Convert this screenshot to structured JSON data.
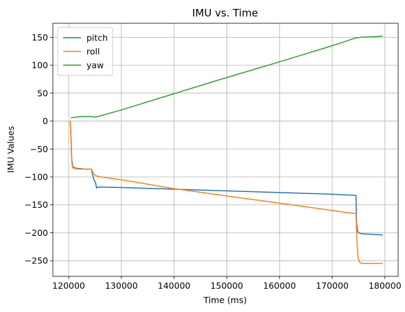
{
  "chart_data": {
    "type": "line",
    "title": "IMU vs. Time",
    "xlabel": "Time (ms)",
    "ylabel": "IMU Values",
    "xlim": [
      117000,
      182500
    ],
    "ylim": [
      -278,
      175
    ],
    "xticks": [
      120000,
      130000,
      140000,
      150000,
      160000,
      170000,
      180000
    ],
    "yticks": [
      -250,
      -200,
      -150,
      -100,
      -50,
      0,
      50,
      100,
      150
    ],
    "grid": true,
    "legend_position": "top-left",
    "series": [
      {
        "name": "pitch",
        "color": "#1f77b4",
        "x": [
          120300,
          120450,
          120600,
          120800,
          121200,
          122000,
          123000,
          124300,
          124500,
          124800,
          125100,
          125300,
          125600,
          130000,
          140000,
          150000,
          160000,
          170000,
          174500,
          174600,
          174800,
          175200,
          176000,
          178000,
          179500
        ],
        "y": [
          -1,
          -30,
          -70,
          -82,
          -84,
          -85,
          -86,
          -86,
          -95,
          -105,
          -110,
          -120,
          -118,
          -119,
          -122,
          -125,
          -128,
          -131,
          -133,
          -180,
          -198,
          -201,
          -202,
          -203,
          -204
        ]
      },
      {
        "name": "roll",
        "color": "#ff7f0e",
        "x": [
          120300,
          120450,
          120600,
          120800,
          121200,
          122000,
          123000,
          124300,
          124600,
          125000,
          125500,
          130000,
          140000,
          150000,
          160000,
          170000,
          174500,
          174700,
          174900,
          175200,
          175600,
          176500,
          178000,
          179500
        ],
        "y": [
          0,
          -35,
          -75,
          -84,
          -85,
          -86,
          -86,
          -86,
          -92,
          -97,
          -99,
          -105,
          -121,
          -134,
          -147,
          -160,
          -166,
          -215,
          -245,
          -253,
          -255,
          -255,
          -255,
          -255
        ]
      },
      {
        "name": "yaw",
        "color": "#2ca02c",
        "x": [
          120500,
          121500,
          122500,
          123500,
          124500,
          125000,
          125500,
          130000,
          140000,
          150000,
          160000,
          170000,
          174500,
          175500,
          178000,
          179500
        ],
        "y": [
          6,
          7,
          8,
          8,
          8,
          7,
          8,
          20,
          49,
          78,
          106,
          135,
          149,
          150,
          151,
          152
        ]
      }
    ]
  }
}
